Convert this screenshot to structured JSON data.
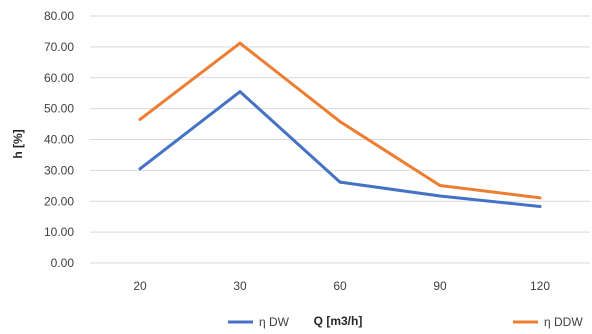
{
  "chart_data": {
    "type": "line",
    "categories": [
      "20",
      "30",
      "60",
      "90",
      "120"
    ],
    "series": [
      {
        "name": "η DW",
        "values": [
          30.5,
          55.5,
          26.2,
          21.7,
          18.3
        ],
        "color": "#4472C4"
      },
      {
        "name": "η DDW",
        "values": [
          46.5,
          71.2,
          45.8,
          25.1,
          21.1
        ],
        "color": "#ED7D31"
      }
    ],
    "xlabel": "Q [m3/h]",
    "ylabel": "h [%]",
    "ylim": [
      0,
      80
    ],
    "yticks": [
      "0.00",
      "10.00",
      "20.00",
      "30.00",
      "40.00",
      "50.00",
      "60.00",
      "70.00",
      "80.00"
    ],
    "grid": true,
    "legend_position": "bottom"
  }
}
